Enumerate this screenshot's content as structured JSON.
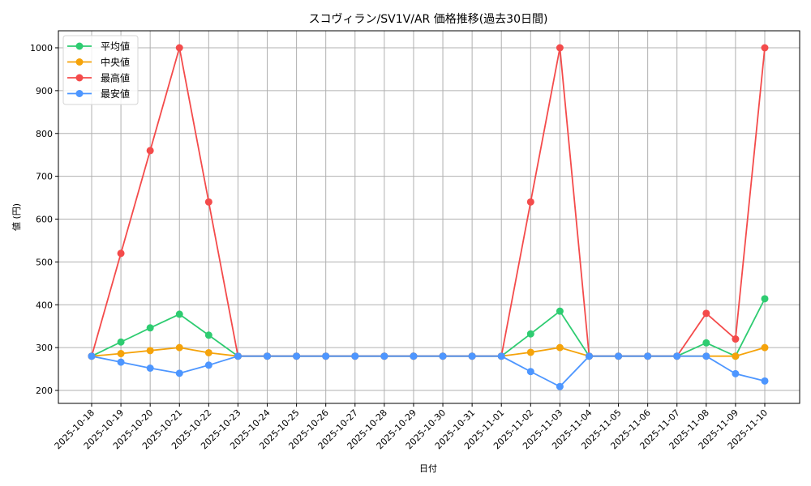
{
  "chart_data": {
    "type": "line",
    "title": "スコヴィラン/SV1V/AR 価格推移(過去30日間)",
    "xlabel": "日付",
    "ylabel": "値 (円)",
    "ylim": [
      170,
      1040
    ],
    "yticks": [
      200,
      300,
      400,
      500,
      600,
      700,
      800,
      900,
      1000
    ],
    "grid": true,
    "legend_position": "upper left",
    "categories": [
      "2025-10-18",
      "2025-10-19",
      "2025-10-20",
      "2025-10-21",
      "2025-10-22",
      "2025-10-23",
      "2025-10-24",
      "2025-10-25",
      "2025-10-26",
      "2025-10-27",
      "2025-10-28",
      "2025-10-29",
      "2025-10-30",
      "2025-10-31",
      "2025-11-01",
      "2025-11-02",
      "2025-11-03",
      "2025-11-04",
      "2025-11-05",
      "2025-11-06",
      "2025-11-07",
      "2025-11-08",
      "2025-11-09",
      "2025-11-10"
    ],
    "series": [
      {
        "name": "平均値",
        "color": "#2ecc71",
        "values": [
          280,
          313,
          346,
          378,
          329,
          280,
          280,
          280,
          280,
          280,
          280,
          280,
          280,
          280,
          280,
          332,
          385,
          280,
          280,
          280,
          280,
          311,
          280,
          414
        ]
      },
      {
        "name": "中央値",
        "color": "#f5a30a",
        "values": [
          280,
          286,
          293,
          300,
          288,
          280,
          280,
          280,
          280,
          280,
          280,
          280,
          280,
          280,
          280,
          289,
          300,
          280,
          280,
          280,
          280,
          280,
          280,
          300
        ]
      },
      {
        "name": "最高値",
        "color": "#f44b4b",
        "values": [
          280,
          520,
          760,
          1000,
          640,
          280,
          280,
          280,
          280,
          280,
          280,
          280,
          280,
          280,
          280,
          640,
          1000,
          280,
          280,
          280,
          280,
          380,
          320,
          1000
        ]
      },
      {
        "name": "最安値",
        "color": "#4d96ff",
        "values": [
          280,
          266,
          252,
          240,
          259,
          280,
          280,
          280,
          280,
          280,
          280,
          280,
          280,
          280,
          280,
          244,
          209,
          280,
          280,
          280,
          280,
          280,
          239,
          222
        ]
      }
    ]
  }
}
